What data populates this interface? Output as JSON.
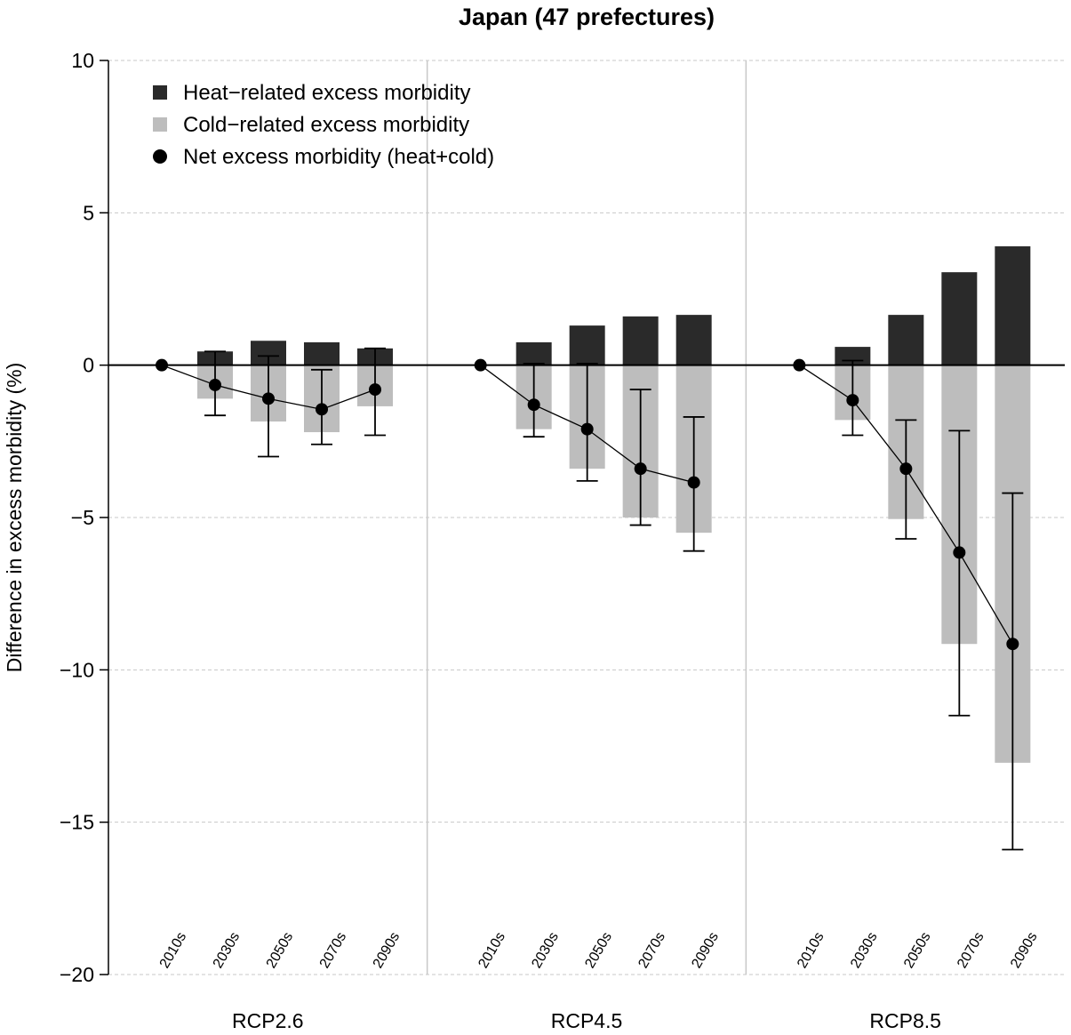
{
  "chart_data": {
    "type": "bar",
    "title": "Japan (47 prefectures)",
    "ylabel": "Difference in excess morbidity (%)",
    "xlabel": "",
    "ylim": [
      -20,
      10
    ],
    "yticks": [
      10,
      5,
      0,
      -5,
      -10,
      -15,
      -20
    ],
    "ytick_labels": [
      "10",
      "5",
      "0",
      "−5",
      "−10",
      "−15",
      "−20"
    ],
    "grid": "horizontal dashed",
    "legend_position": "top-left",
    "decades": [
      "2010s",
      "2030s",
      "2050s",
      "2070s",
      "2090s"
    ],
    "panels": [
      {
        "name": "RCP2.6",
        "heat": [
          0,
          0.45,
          0.8,
          0.75,
          0.55
        ],
        "cold": [
          0,
          -1.1,
          -1.85,
          -2.2,
          -1.35
        ],
        "net": [
          0,
          -0.65,
          -1.1,
          -1.45,
          -0.8
        ],
        "ci_low": [
          null,
          -1.65,
          -3.0,
          -2.6,
          -2.3
        ],
        "ci_high": [
          null,
          0.45,
          0.3,
          -0.15,
          0.55
        ]
      },
      {
        "name": "RCP4.5",
        "heat": [
          0,
          0.75,
          1.3,
          1.6,
          1.65
        ],
        "cold": [
          0,
          -2.1,
          -3.4,
          -5.0,
          -5.5
        ],
        "net": [
          0,
          -1.3,
          -2.1,
          -3.4,
          -3.85
        ],
        "ci_low": [
          null,
          -2.35,
          -3.8,
          -5.25,
          -6.1
        ],
        "ci_high": [
          null,
          0.05,
          0.05,
          -0.8,
          -1.7
        ]
      },
      {
        "name": "RCP8.5",
        "heat": [
          0,
          0.6,
          1.65,
          3.05,
          3.9
        ],
        "cold": [
          0,
          -1.8,
          -5.05,
          -9.15,
          -13.05
        ],
        "net": [
          0,
          -1.15,
          -3.4,
          -6.15,
          -9.15
        ],
        "ci_low": [
          null,
          -2.3,
          -5.7,
          -11.5,
          -15.9
        ],
        "ci_high": [
          null,
          0.15,
          -1.8,
          -2.15,
          -4.2
        ]
      }
    ],
    "legend": [
      {
        "label": "Heat−related excess morbidity",
        "marker": "square",
        "color": "#2a2a2a"
      },
      {
        "label": "Cold−related excess morbidity",
        "marker": "square",
        "color": "#bdbdbd"
      },
      {
        "label": "Net excess morbidity (heat+cold)",
        "marker": "circle",
        "color": "#000000"
      }
    ],
    "colors": {
      "heat": "#2a2a2a",
      "cold": "#bdbdbd",
      "net": "#000000",
      "grid": "#c8c8c8",
      "divider": "#c8c8c8"
    }
  }
}
